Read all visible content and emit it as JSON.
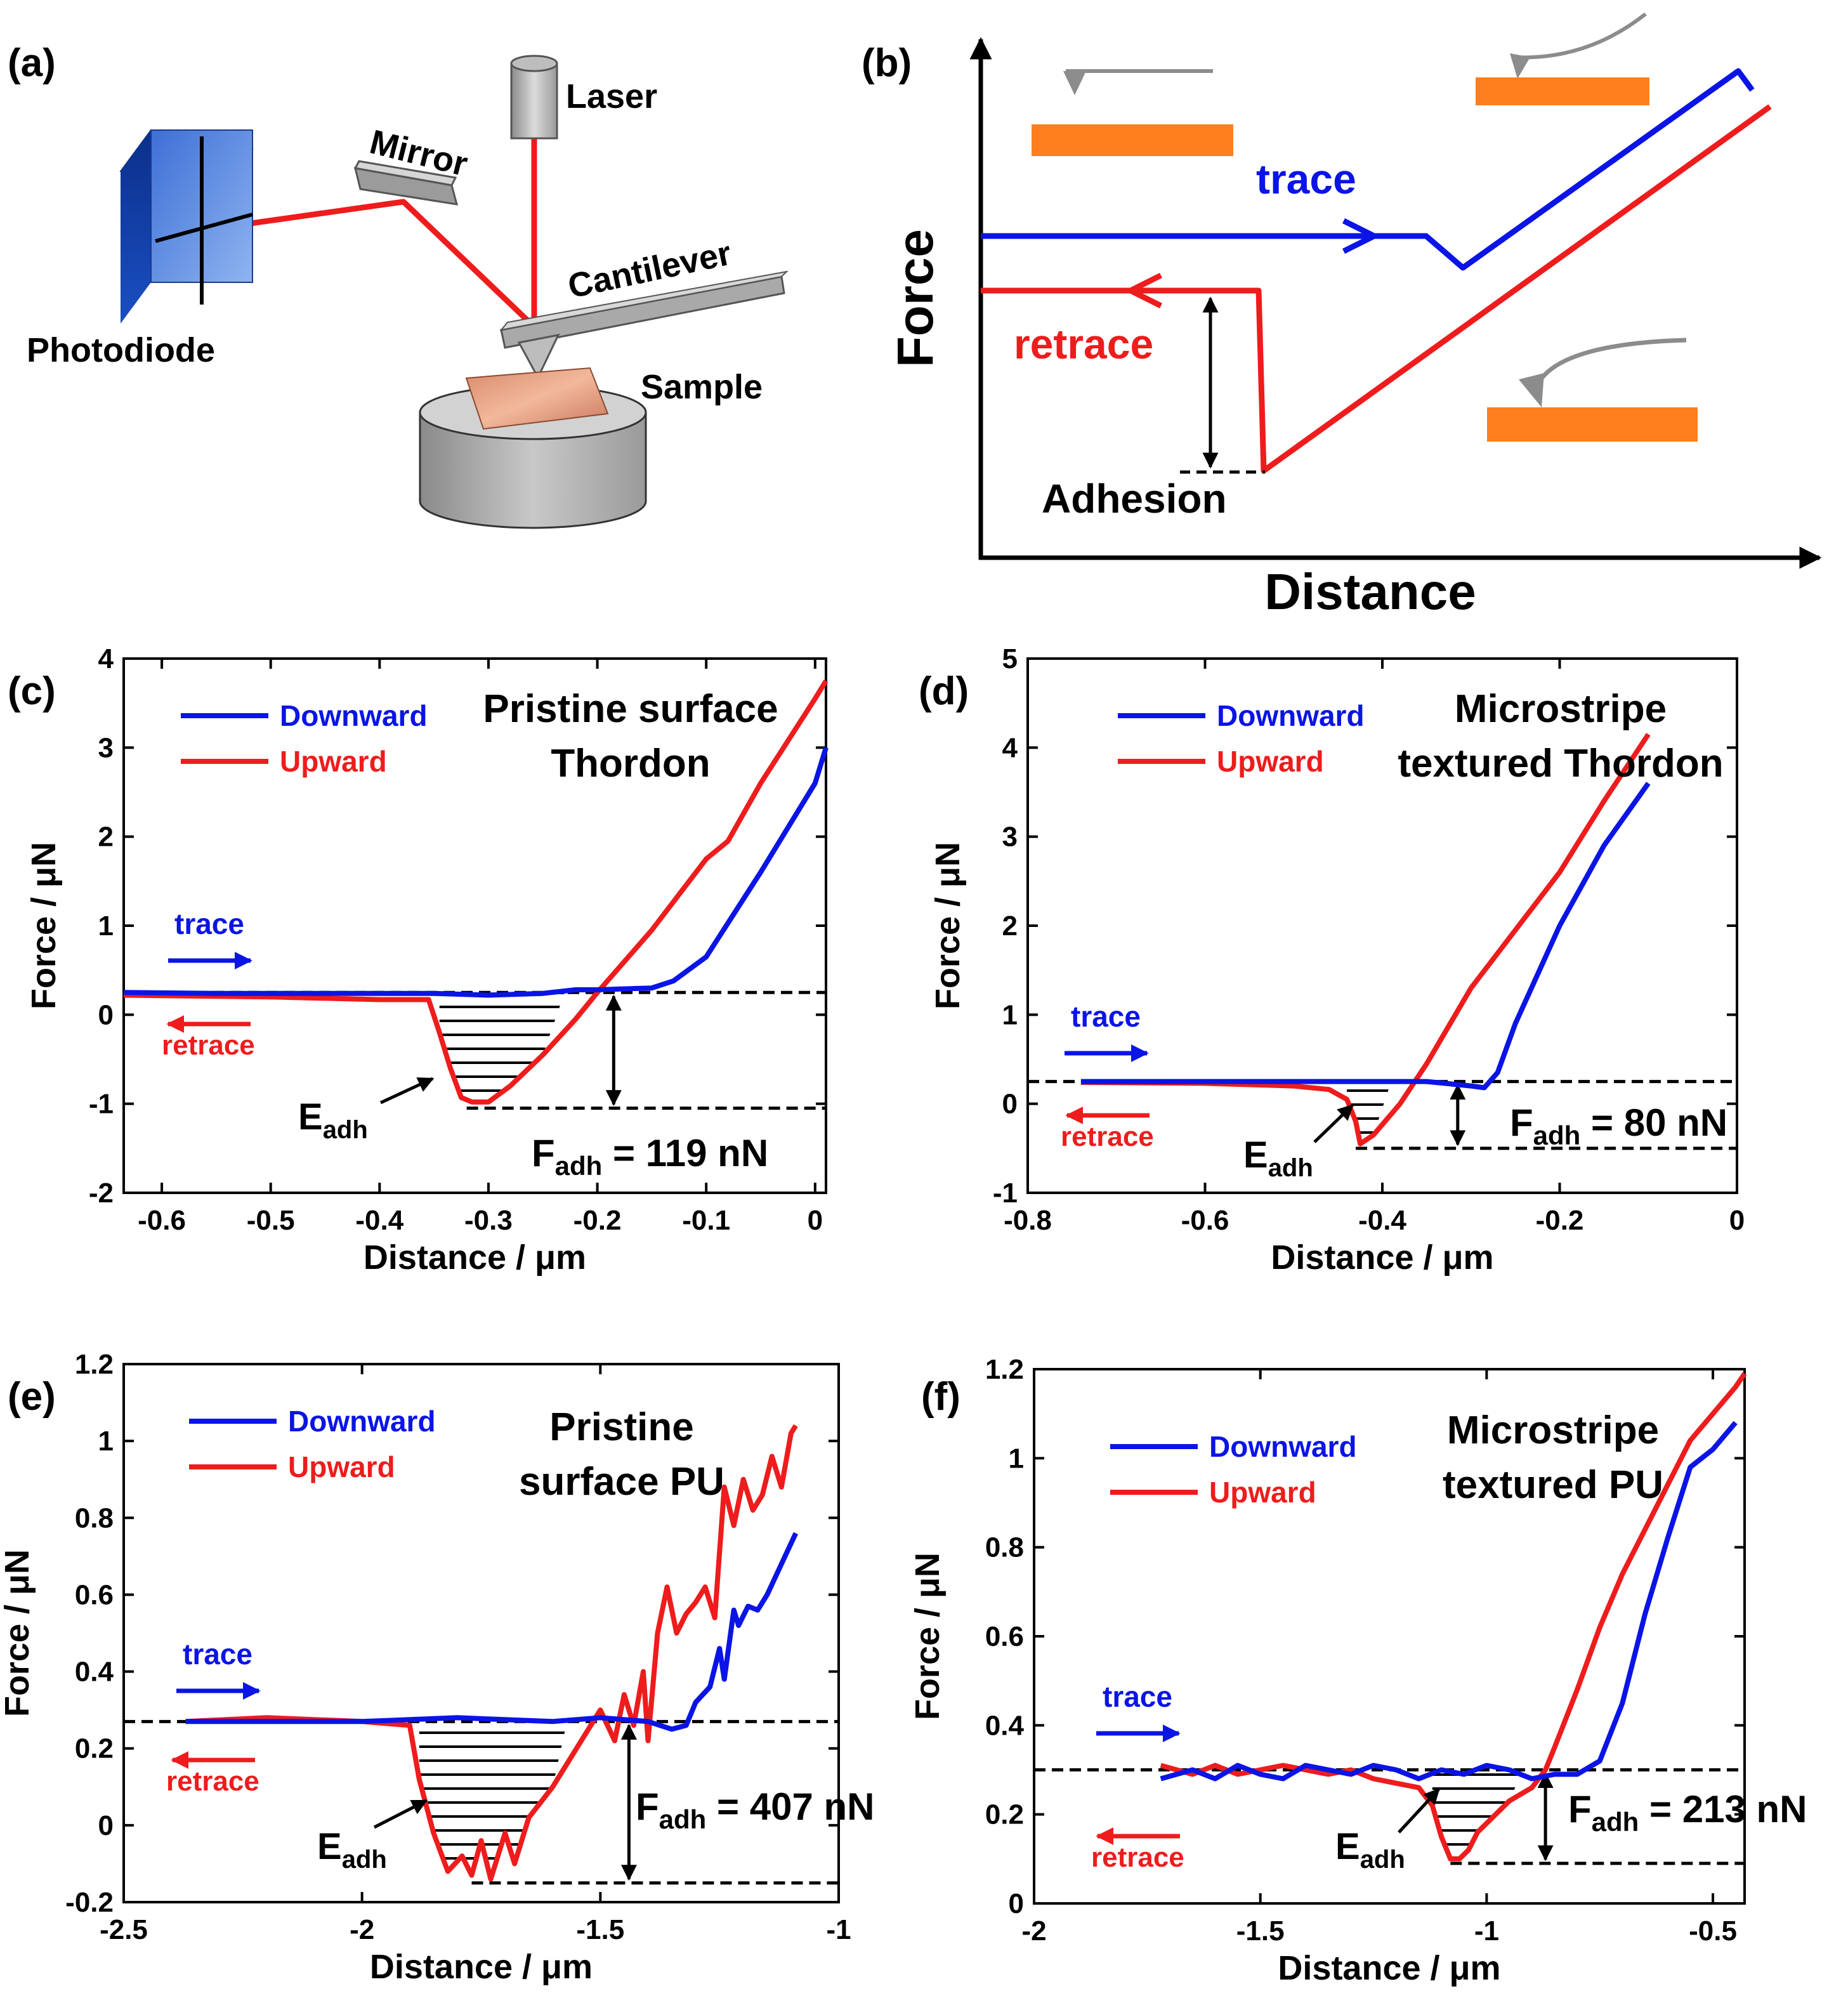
{
  "colors": {
    "blue": "#0a14e6",
    "red": "#ee1c1c",
    "orange": "#ff7f1e",
    "black": "#000000",
    "gray": "#8c8c8c"
  },
  "panel_a": {
    "label": "(a)",
    "labels": {
      "laser": "Laser",
      "mirror": "Mirror",
      "cantilever": "Cantilever",
      "photodiode": "Photodiode",
      "sample": "Sample"
    }
  },
  "panel_b": {
    "label": "(b)",
    "xlabel": "Distance",
    "ylabel": "Force",
    "trace_label": "trace",
    "retrace_label": "retrace",
    "adhesion_label": "Adhesion"
  },
  "chart_data": [
    {
      "id": "c",
      "type": "line",
      "label": "(c)",
      "title": [
        "Pristine surface",
        "Thordon"
      ],
      "xlabel": "Distance / μm",
      "ylabel": "Force / μN",
      "xlim": [
        -0.635,
        0.01
      ],
      "ylim": [
        -2,
        4
      ],
      "xticks": [
        -0.6,
        -0.5,
        -0.4,
        -0.3,
        -0.2,
        -0.1,
        0
      ],
      "xticklabels": [
        "-0.6",
        "-0.5",
        "-0.4",
        "-0.3",
        "-0.2",
        "-0.1",
        "0"
      ],
      "yticks": [
        -2,
        -1,
        0,
        1,
        2,
        3,
        4
      ],
      "yticklabels": [
        "-2",
        "-1",
        "0",
        "1",
        "2",
        "3",
        "4"
      ],
      "legend": [
        "Downward",
        "Upward"
      ],
      "trace_label": "trace",
      "retrace_label": "retrace",
      "eadh_label": "E",
      "eadh_sub": "adh",
      "fadh_label": "F",
      "fadh_sub": "adh",
      "fadh_value": " = 119 nN",
      "baseline": 0.25,
      "min_line": -1.05,
      "min_line_x": [
        -0.32,
        0.01
      ],
      "fadh_arrow_x": -0.185,
      "shade_x": [
        -0.345,
        -0.23
      ],
      "series": [
        {
          "name": "Downward",
          "x": [
            -0.635,
            -0.55,
            -0.45,
            -0.4,
            -0.35,
            -0.3,
            -0.25,
            -0.22,
            -0.2,
            -0.15,
            -0.13,
            -0.1,
            -0.05,
            0,
            0.01
          ],
          "y": [
            0.25,
            0.24,
            0.24,
            0.24,
            0.24,
            0.22,
            0.24,
            0.28,
            0.28,
            0.3,
            0.38,
            0.65,
            1.6,
            2.6,
            3.0
          ]
        },
        {
          "name": "Upward",
          "x": [
            -0.635,
            -0.5,
            -0.4,
            -0.355,
            -0.345,
            -0.335,
            -0.325,
            -0.315,
            -0.3,
            -0.28,
            -0.25,
            -0.22,
            -0.2,
            -0.15,
            -0.1,
            -0.08,
            -0.05,
            0,
            0.01
          ],
          "y": [
            0.22,
            0.2,
            0.17,
            0.17,
            -0.2,
            -0.6,
            -0.93,
            -0.98,
            -0.98,
            -0.8,
            -0.45,
            -0.05,
            0.25,
            0.95,
            1.75,
            1.95,
            2.6,
            3.55,
            3.75
          ]
        }
      ]
    },
    {
      "id": "d",
      "type": "line",
      "label": "(d)",
      "title": [
        "Microstripe",
        "textured Thordon"
      ],
      "xlabel": "Distance / μm",
      "ylabel": "Force / μN",
      "xlim": [
        -0.8,
        0
      ],
      "ylim": [
        -1,
        5
      ],
      "xticks": [
        -0.8,
        -0.6,
        -0.4,
        -0.2,
        0
      ],
      "xticklabels": [
        "-0.8",
        "-0.6",
        "-0.4",
        "-0.2",
        "0"
      ],
      "yticks": [
        -1,
        0,
        1,
        2,
        3,
        4,
        5
      ],
      "yticklabels": [
        "-1",
        "0",
        "1",
        "2",
        "3",
        "4",
        "5"
      ],
      "legend": [
        "Downward",
        "Upward"
      ],
      "trace_label": "trace",
      "retrace_label": "retrace",
      "eadh_label": "E",
      "eadh_sub": "adh",
      "fadh_label": "F",
      "fadh_sub": "adh",
      "fadh_value": " = 80 nN",
      "baseline": 0.25,
      "min_line": -0.5,
      "min_line_x": [
        -0.43,
        0
      ],
      "fadh_arrow_x": -0.315,
      "shade_x": [
        -0.44,
        -0.39
      ],
      "series": [
        {
          "name": "Downward",
          "x": [
            -0.74,
            -0.6,
            -0.5,
            -0.4,
            -0.35,
            -0.3,
            -0.285,
            -0.27,
            -0.25,
            -0.2,
            -0.15,
            -0.1
          ],
          "y": [
            0.25,
            0.25,
            0.25,
            0.25,
            0.25,
            0.2,
            0.18,
            0.35,
            0.9,
            2.0,
            2.9,
            3.6
          ]
        },
        {
          "name": "Upward",
          "x": [
            -0.74,
            -0.6,
            -0.5,
            -0.46,
            -0.44,
            -0.43,
            -0.425,
            -0.41,
            -0.38,
            -0.35,
            -0.3,
            -0.25,
            -0.2,
            -0.15,
            -0.1
          ],
          "y": [
            0.24,
            0.23,
            0.2,
            0.16,
            0.05,
            -0.2,
            -0.45,
            -0.35,
            0.0,
            0.45,
            1.3,
            1.95,
            2.6,
            3.4,
            4.15
          ]
        }
      ]
    },
    {
      "id": "e",
      "type": "line",
      "label": "(e)",
      "title": [
        "Pristine",
        "surface PU"
      ],
      "xlabel": "Distance / μm",
      "ylabel": "Force / μN",
      "xlim": [
        -2.5,
        -1
      ],
      "ylim": [
        -0.2,
        1.2
      ],
      "xticks": [
        -2.5,
        -2,
        -1.5,
        -1
      ],
      "xticklabels": [
        "-2.5",
        "-2",
        "-1.5",
        "-1"
      ],
      "yticks": [
        -0.2,
        0,
        0.2,
        0.4,
        0.6,
        0.8,
        1,
        1.2
      ],
      "yticklabels": [
        "-0.2",
        "0",
        "0.2",
        "0.4",
        "0.6",
        "0.8",
        "1",
        "1.2"
      ],
      "legend": [
        "Downward",
        "Upward"
      ],
      "trace_label": "trace",
      "retrace_label": "retrace",
      "eadh_label": "E",
      "eadh_sub": "adh",
      "fadh_label": "F",
      "fadh_sub": "adh",
      "fadh_value": " = 407 nN",
      "baseline": 0.27,
      "min_line": -0.15,
      "min_line_x": [
        -1.77,
        -1
      ],
      "fadh_arrow_x": -1.44,
      "shade_x": [
        -1.88,
        -1.57
      ],
      "series": [
        {
          "name": "Downward",
          "x": [
            -2.37,
            -2.2,
            -2,
            -1.8,
            -1.6,
            -1.5,
            -1.4,
            -1.35,
            -1.32,
            -1.3,
            -1.27,
            -1.25,
            -1.24,
            -1.22,
            -1.21,
            -1.19,
            -1.17,
            -1.15,
            -1.12,
            -1.09
          ],
          "y": [
            0.27,
            0.27,
            0.27,
            0.28,
            0.27,
            0.28,
            0.27,
            0.25,
            0.26,
            0.32,
            0.36,
            0.46,
            0.38,
            0.56,
            0.52,
            0.57,
            0.56,
            0.6,
            0.68,
            0.76
          ]
        },
        {
          "name": "Upward",
          "x": [
            -2.37,
            -2.2,
            -2,
            -1.9,
            -1.88,
            -1.85,
            -1.82,
            -1.79,
            -1.77,
            -1.75,
            -1.73,
            -1.7,
            -1.68,
            -1.65,
            -1.6,
            -1.55,
            -1.5,
            -1.47,
            -1.45,
            -1.43,
            -1.41,
            -1.4,
            -1.38,
            -1.36,
            -1.34,
            -1.32,
            -1.3,
            -1.28,
            -1.26,
            -1.24,
            -1.22,
            -1.2,
            -1.18,
            -1.16,
            -1.14,
            -1.12,
            -1.1,
            -1.09
          ],
          "y": [
            0.27,
            0.28,
            0.27,
            0.26,
            0.12,
            -0.02,
            -0.12,
            -0.08,
            -0.13,
            -0.04,
            -0.14,
            -0.02,
            -0.1,
            0.02,
            0.1,
            0.2,
            0.3,
            0.22,
            0.34,
            0.26,
            0.4,
            0.22,
            0.5,
            0.62,
            0.5,
            0.55,
            0.58,
            0.62,
            0.54,
            0.88,
            0.78,
            0.9,
            0.82,
            0.86,
            0.96,
            0.88,
            1.02,
            1.04
          ]
        }
      ]
    },
    {
      "id": "f",
      "type": "line",
      "label": "(f)",
      "title": [
        "Microstripe",
        "textured PU"
      ],
      "xlabel": "Distance / μm",
      "ylabel": "Force / μN",
      "xlim": [
        -2,
        -0.43
      ],
      "ylim": [
        0,
        1.2
      ],
      "xticks": [
        -2,
        -1.5,
        -1,
        -0.5
      ],
      "xticklabels": [
        "-2",
        "-1.5",
        "-1",
        "-0.5"
      ],
      "yticks": [
        0,
        0.2,
        0.4,
        0.6,
        0.8,
        1,
        1.2
      ],
      "yticklabels": [
        "0",
        "0.2",
        "0.4",
        "0.6",
        "0.8",
        "1",
        "1.2"
      ],
      "legend": [
        "Downward",
        "Upward"
      ],
      "trace_label": "trace",
      "retrace_label": "retrace",
      "eadh_label": "E",
      "eadh_sub": "adh",
      "fadh_label": "F",
      "fadh_sub": "adh",
      "fadh_value": " = 213 nN",
      "baseline": 0.3,
      "min_line": 0.09,
      "min_line_x": [
        -1.08,
        -0.43
      ],
      "fadh_arrow_x": -0.87,
      "shade_x": [
        -1.12,
        -0.92
      ],
      "series": [
        {
          "name": "Downward",
          "x": [
            -1.72,
            -1.65,
            -1.6,
            -1.55,
            -1.5,
            -1.45,
            -1.4,
            -1.35,
            -1.3,
            -1.25,
            -1.2,
            -1.15,
            -1.1,
            -1.05,
            -1,
            -0.95,
            -0.9,
            -0.85,
            -0.8,
            -0.75,
            -0.7,
            -0.65,
            -0.6,
            -0.55,
            -0.5,
            -0.45
          ],
          "y": [
            0.28,
            0.3,
            0.28,
            0.31,
            0.29,
            0.28,
            0.31,
            0.3,
            0.29,
            0.31,
            0.3,
            0.28,
            0.3,
            0.29,
            0.31,
            0.3,
            0.28,
            0.29,
            0.29,
            0.32,
            0.45,
            0.65,
            0.82,
            0.98,
            1.02,
            1.08
          ]
        },
        {
          "name": "Upward",
          "x": [
            -1.72,
            -1.65,
            -1.6,
            -1.55,
            -1.5,
            -1.45,
            -1.4,
            -1.35,
            -1.3,
            -1.25,
            -1.2,
            -1.15,
            -1.12,
            -1.1,
            -1.08,
            -1.06,
            -1.04,
            -1.02,
            -1,
            -0.98,
            -0.95,
            -0.9,
            -0.87,
            -0.85,
            -0.8,
            -0.75,
            -0.7,
            -0.65,
            -0.6,
            -0.55,
            -0.5,
            -0.45,
            -0.43
          ],
          "y": [
            0.31,
            0.29,
            0.31,
            0.29,
            0.3,
            0.31,
            0.3,
            0.29,
            0.3,
            0.28,
            0.27,
            0.26,
            0.22,
            0.15,
            0.1,
            0.1,
            0.12,
            0.16,
            0.18,
            0.2,
            0.23,
            0.26,
            0.3,
            0.35,
            0.48,
            0.62,
            0.74,
            0.84,
            0.94,
            1.04,
            1.1,
            1.16,
            1.19
          ]
        }
      ]
    }
  ]
}
